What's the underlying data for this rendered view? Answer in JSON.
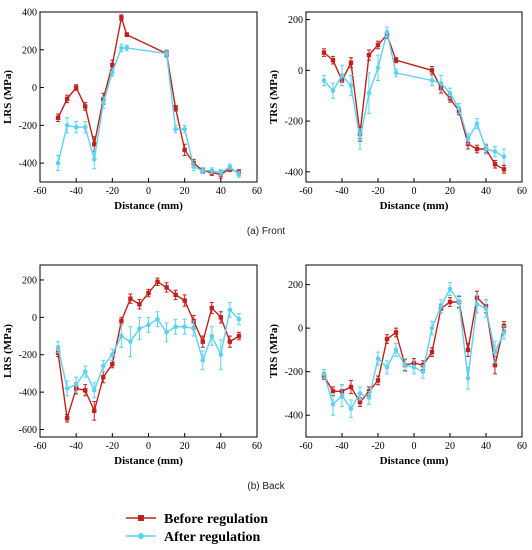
{
  "captions": {
    "front": "(a) Front",
    "back": "(b) Back"
  },
  "colors": {
    "before": "#c0221b",
    "after": "#5cd2f0"
  },
  "legend": {
    "before": "Before regulation",
    "after": "After regulation"
  },
  "chart_data": [
    {
      "id": "front-lrs",
      "type": "line",
      "xlabel": "Distance (mm)",
      "ylabel": "LRS (MPa)",
      "xlim": [
        -60,
        60
      ],
      "ylim": [
        -500,
        400
      ],
      "xticks": [
        -60,
        -40,
        -20,
        0,
        20,
        40,
        60
      ],
      "yticks": [
        -400,
        -200,
        0,
        200,
        400
      ],
      "series": [
        {
          "name": "Before regulation",
          "x": [
            -50,
            -45,
            -40,
            -35,
            -30,
            -25,
            -20,
            -15,
            -12,
            10,
            15,
            20,
            25,
            30,
            35,
            40,
            45,
            50
          ],
          "y": [
            -160,
            -60,
            0,
            -100,
            -300,
            -60,
            120,
            370,
            280,
            180,
            -110,
            -330,
            -400,
            -440,
            -450,
            -460,
            -430,
            -450
          ],
          "err": [
            20,
            20,
            15,
            20,
            40,
            30,
            25,
            15,
            10,
            15,
            15,
            30,
            20,
            15,
            15,
            20,
            15,
            15
          ]
        },
        {
          "name": "After regulation",
          "x": [
            -50,
            -45,
            -40,
            -35,
            -30,
            -25,
            -20,
            -15,
            -12,
            10,
            15,
            20,
            25,
            30,
            35,
            40,
            45,
            50
          ],
          "y": [
            -400,
            -200,
            -210,
            -210,
            -380,
            -80,
            80,
            210,
            210,
            180,
            -220,
            -220,
            -420,
            -440,
            -440,
            -450,
            -420,
            -460
          ],
          "err": [
            40,
            40,
            30,
            30,
            50,
            30,
            20,
            20,
            15,
            20,
            20,
            20,
            20,
            15,
            15,
            15,
            15,
            15
          ]
        }
      ]
    },
    {
      "id": "front-trs",
      "type": "line",
      "xlabel": "Distance (mm)",
      "ylabel": "TRS (MPa)",
      "xlim": [
        -60,
        60
      ],
      "ylim": [
        -440,
        230
      ],
      "xticks": [
        -60,
        -40,
        -20,
        0,
        20,
        40,
        60
      ],
      "yticks": [
        -400,
        -200,
        0,
        200
      ],
      "series": [
        {
          "name": "Before regulation",
          "x": [
            -50,
            -45,
            -40,
            -35,
            -30,
            -25,
            -20,
            -15,
            -10,
            10,
            15,
            20,
            25,
            30,
            35,
            40,
            45,
            50
          ],
          "y": [
            70,
            40,
            -40,
            30,
            -250,
            60,
            100,
            140,
            40,
            0,
            -70,
            -110,
            -160,
            -290,
            -310,
            -310,
            -370,
            -390
          ],
          "err": [
            15,
            15,
            20,
            20,
            30,
            20,
            15,
            15,
            10,
            15,
            20,
            15,
            15,
            20,
            15,
            15,
            15,
            15
          ]
        },
        {
          "name": "After regulation",
          "x": [
            -50,
            -45,
            -40,
            -35,
            -30,
            -25,
            -20,
            -15,
            -10,
            10,
            15,
            20,
            25,
            30,
            35,
            40,
            45,
            50
          ],
          "y": [
            -40,
            -80,
            -20,
            -60,
            -270,
            -90,
            10,
            150,
            -10,
            -40,
            -50,
            -90,
            -150,
            -270,
            -210,
            -310,
            -320,
            -340
          ],
          "err": [
            20,
            30,
            40,
            40,
            40,
            80,
            50,
            20,
            15,
            20,
            30,
            20,
            20,
            20,
            20,
            20,
            20,
            30
          ]
        }
      ]
    },
    {
      "id": "back-lrs",
      "type": "line",
      "xlabel": "Distance (mm)",
      "ylabel": "LRS (MPa)",
      "xlim": [
        -60,
        60
      ],
      "ylim": [
        -640,
        280
      ],
      "xticks": [
        -60,
        -40,
        -20,
        0,
        20,
        40,
        60
      ],
      "yticks": [
        -600,
        -400,
        -200,
        0,
        200
      ],
      "series": [
        {
          "name": "Before regulation",
          "x": [
            -50,
            -45,
            -40,
            -35,
            -30,
            -25,
            -20,
            -15,
            -10,
            -5,
            0,
            5,
            10,
            15,
            20,
            25,
            30,
            35,
            40,
            45,
            50
          ],
          "y": [
            -190,
            -540,
            -380,
            -390,
            -500,
            -320,
            -250,
            -20,
            100,
            70,
            130,
            190,
            160,
            120,
            90,
            -20,
            -130,
            50,
            0,
            -130,
            -100
          ],
          "err": [
            20,
            20,
            30,
            30,
            50,
            30,
            20,
            20,
            25,
            25,
            20,
            20,
            25,
            25,
            30,
            30,
            30,
            30,
            30,
            30,
            20
          ]
        },
        {
          "name": "After regulation",
          "x": [
            -50,
            -45,
            -40,
            -35,
            -30,
            -25,
            -20,
            -15,
            -10,
            -5,
            0,
            5,
            10,
            15,
            20,
            25,
            30,
            35,
            40,
            45,
            50
          ],
          "y": [
            -160,
            -380,
            -360,
            -290,
            -390,
            -260,
            -200,
            -100,
            -130,
            -60,
            -40,
            -10,
            -80,
            -50,
            -50,
            -60,
            -230,
            -100,
            -200,
            40,
            -10
          ],
          "err": [
            30,
            40,
            40,
            30,
            40,
            30,
            30,
            60,
            80,
            60,
            40,
            40,
            50,
            40,
            40,
            40,
            50,
            50,
            80,
            40,
            30
          ]
        }
      ]
    },
    {
      "id": "back-trs",
      "type": "line",
      "xlabel": "Distance (mm)",
      "ylabel": "TRS (MPa)",
      "xlim": [
        -60,
        60
      ],
      "ylim": [
        -500,
        290
      ],
      "xticks": [
        -60,
        -40,
        -20,
        0,
        20,
        40,
        60
      ],
      "yticks": [
        -400,
        -200,
        0,
        200
      ],
      "series": [
        {
          "name": "Before regulation",
          "x": [
            -50,
            -45,
            -40,
            -35,
            -30,
            -25,
            -20,
            -15,
            -10,
            -5,
            0,
            5,
            10,
            15,
            20,
            25,
            30,
            35,
            40,
            45,
            50
          ],
          "y": [
            -220,
            -290,
            -290,
            -270,
            -340,
            -290,
            -240,
            -50,
            -20,
            -170,
            -160,
            -170,
            -110,
            90,
            120,
            120,
            -100,
            140,
            100,
            -170,
            10
          ],
          "err": [
            15,
            20,
            30,
            30,
            20,
            20,
            20,
            20,
            20,
            25,
            20,
            20,
            20,
            20,
            20,
            25,
            30,
            30,
            30,
            40,
            20
          ]
        },
        {
          "name": "After regulation",
          "x": [
            -50,
            -45,
            -40,
            -35,
            -30,
            -25,
            -20,
            -15,
            -10,
            -5,
            0,
            5,
            10,
            15,
            20,
            25,
            30,
            35,
            40,
            45,
            50
          ],
          "y": [
            -210,
            -350,
            -310,
            -370,
            -300,
            -320,
            -140,
            -180,
            -100,
            -170,
            -180,
            -200,
            0,
            100,
            180,
            120,
            -230,
            110,
            90,
            -110,
            -20
          ],
          "err": [
            20,
            50,
            50,
            40,
            30,
            30,
            30,
            30,
            30,
            30,
            30,
            30,
            30,
            30,
            30,
            30,
            50,
            40,
            40,
            50,
            30
          ]
        }
      ]
    }
  ]
}
